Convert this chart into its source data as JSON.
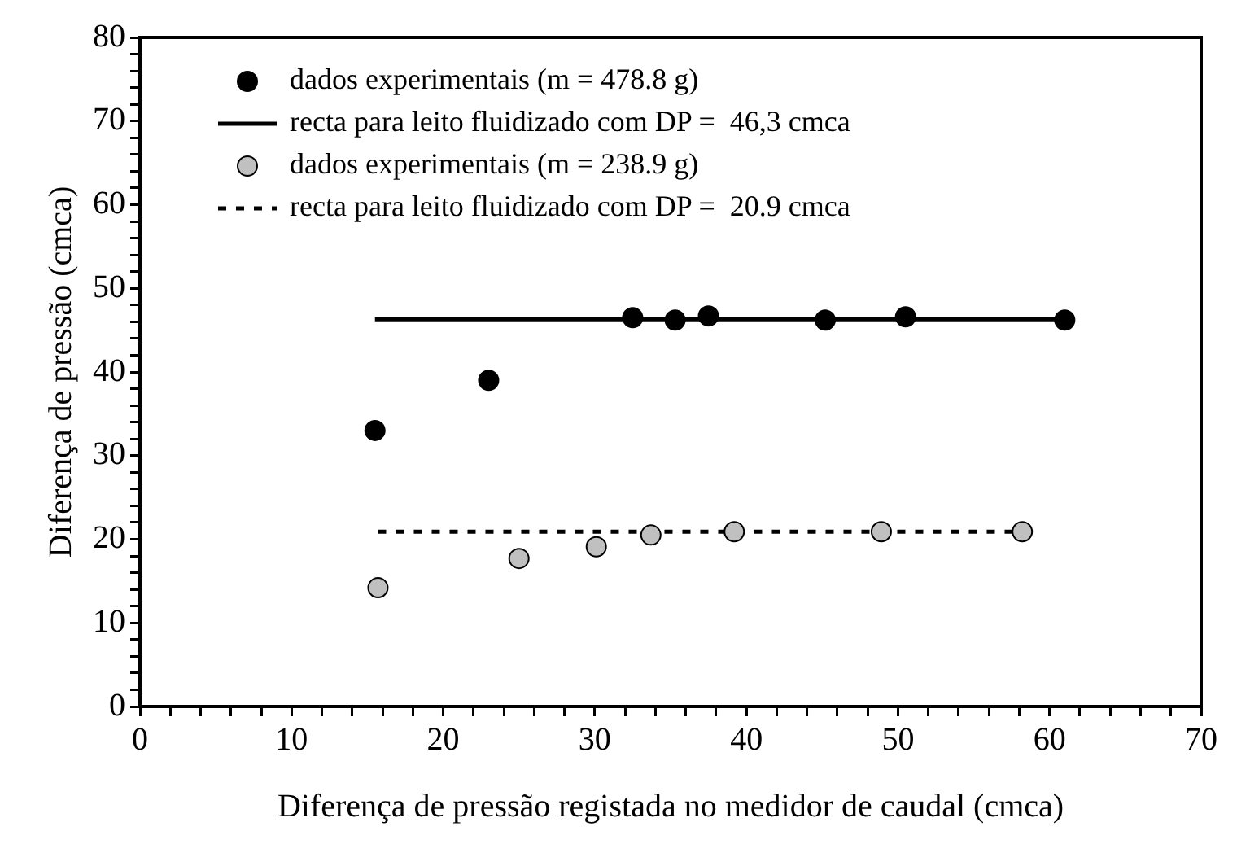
{
  "chart_data": {
    "type": "scatter",
    "xlabel": "Diferença de pressão registada no medidor de caudal (cmca)",
    "ylabel": "Diferença de pressão (cmca)",
    "series": [
      {
        "name": "dados experimentais (m = 478.8 g)",
        "color": "#000000",
        "marker": "circle",
        "x": [
          15.5,
          23,
          32.5,
          35.3,
          37.5,
          45.2,
          50.5,
          61
        ],
        "values": [
          33,
          39,
          46.5,
          46.2,
          46.7,
          46.2,
          46.6,
          46.2
        ]
      },
      {
        "name": "recta para leito fluidizado com DP =  46,3 cmca",
        "type": "line",
        "color": "#000000",
        "line_style": "solid",
        "marker": "none",
        "x": [
          15.5,
          61
        ],
        "values": [
          46.3,
          46.3
        ]
      },
      {
        "name": "dados experimentais (m = 238.9 g)",
        "color": "#c0c0c0",
        "marker": "circle",
        "x": [
          15.7,
          25,
          30.1,
          33.7,
          39.2,
          48.9,
          58.2
        ],
        "values": [
          14.2,
          17.7,
          19.1,
          20.5,
          20.9,
          20.9,
          20.9
        ]
      },
      {
        "name": "recta para leito fluidizado com DP =  20.9 cmca",
        "type": "line",
        "color": "#000000",
        "line_style": "dashed",
        "marker": "none",
        "x": [
          15.7,
          58.2
        ],
        "values": [
          20.9,
          20.9
        ]
      }
    ],
    "xlim": [
      0,
      70
    ],
    "xticks": [
      0,
      {
        "value": 2,
        "label": null
      },
      {
        "value": 4,
        "label": null
      },
      {
        "value": 6,
        "label": null
      },
      {
        "value": 8,
        "label": null
      },
      10,
      {
        "value": 12,
        "label": null
      },
      {
        "value": 14,
        "label": null
      },
      {
        "value": 16,
        "label": null
      },
      {
        "value": 18,
        "label": null
      },
      20,
      {
        "value": 22,
        "label": null
      },
      {
        "value": 24,
        "label": null
      },
      {
        "value": 26,
        "label": null
      },
      {
        "value": 28,
        "label": null
      },
      30,
      {
        "value": 32,
        "label": null
      },
      {
        "value": 34,
        "label": null
      },
      {
        "value": 36,
        "label": null
      },
      {
        "value": 38,
        "label": null
      },
      40,
      {
        "value": 42,
        "label": null
      },
      {
        "value": 44,
        "label": null
      },
      {
        "value": 46,
        "label": null
      },
      {
        "value": 48,
        "label": null
      },
      50,
      {
        "value": 52,
        "label": null
      },
      {
        "value": 54,
        "label": null
      },
      {
        "value": 56,
        "label": null
      },
      {
        "value": 58,
        "label": null
      },
      60,
      {
        "value": 62,
        "label": null
      },
      {
        "value": 64,
        "label": null
      },
      {
        "value": 66,
        "label": null
      },
      {
        "value": 68,
        "label": null
      },
      70
    ],
    "ylim": [
      0,
      80
    ],
    "yticks": [
      0,
      {
        "value": 2,
        "label": null
      },
      {
        "value": 4,
        "label": null
      },
      {
        "value": 6,
        "label": null
      },
      {
        "value": 8,
        "label": null
      },
      10,
      {
        "value": 12,
        "label": null
      },
      {
        "value": 14,
        "label": null
      },
      {
        "value": 16,
        "label": null
      },
      {
        "value": 18,
        "label": null
      },
      20,
      {
        "value": 22,
        "label": null
      },
      {
        "value": 24,
        "label": null
      },
      {
        "value": 26,
        "label": null
      },
      {
        "value": 28,
        "label": null
      },
      30,
      {
        "value": 32,
        "label": null
      },
      {
        "value": 34,
        "label": null
      },
      {
        "value": 36,
        "label": null
      },
      {
        "value": 38,
        "label": null
      },
      40,
      {
        "value": 42,
        "label": null
      },
      {
        "value": 44,
        "label": null
      },
      {
        "value": 46,
        "label": null
      },
      {
        "value": 48,
        "label": null
      },
      50,
      {
        "value": 52,
        "label": null
      },
      {
        "value": 54,
        "label": null
      },
      {
        "value": 56,
        "label": null
      },
      {
        "value": 58,
        "label": null
      },
      60,
      {
        "value": 62,
        "label": null
      },
      {
        "value": 64,
        "label": null
      },
      {
        "value": 66,
        "label": null
      },
      {
        "value": 68,
        "label": null
      },
      70,
      {
        "value": 72,
        "label": null
      },
      {
        "value": 74,
        "label": null
      },
      {
        "value": 76,
        "label": null
      },
      {
        "value": 78,
        "label": null
      },
      80
    ],
    "grid": false,
    "legend": "top left"
  }
}
